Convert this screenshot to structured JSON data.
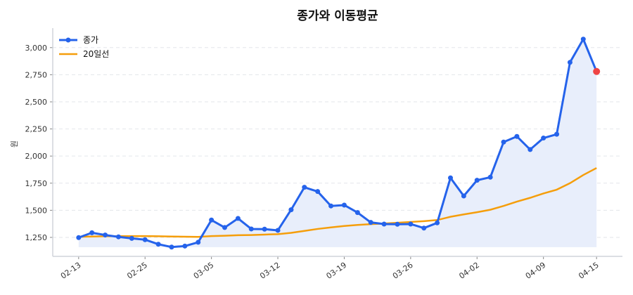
{
  "chart_data": {
    "type": "line",
    "title": "종가와 이동평균",
    "xlabel": "",
    "ylabel": "원",
    "ylim": [
      1075,
      3180
    ],
    "xlim": [
      -1.95,
      40.95
    ],
    "grid": "y-dashed",
    "legend": "top-left",
    "x_ticks": [
      {
        "index": 0,
        "label": "02-13"
      },
      {
        "index": 5,
        "label": "02-25"
      },
      {
        "index": 10,
        "label": "03-05"
      },
      {
        "index": 15,
        "label": "03-12"
      },
      {
        "index": 20,
        "label": "03-19"
      },
      {
        "index": 25,
        "label": "03-26"
      },
      {
        "index": 30,
        "label": "04-02"
      },
      {
        "index": 35,
        "label": "04-09"
      },
      {
        "index": 39,
        "label": "04-15"
      }
    ],
    "y_ticks": [
      {
        "value": 1250,
        "label": "1,250"
      },
      {
        "value": 1500,
        "label": "1,500"
      },
      {
        "value": 1750,
        "label": "1,750"
      },
      {
        "value": 2000,
        "label": "2,000"
      },
      {
        "value": 2250,
        "label": "2,250"
      },
      {
        "value": 2500,
        "label": "2,500"
      },
      {
        "value": 2750,
        "label": "2,750"
      },
      {
        "value": 3000,
        "label": "3,000"
      }
    ],
    "fill_baseline": 1160,
    "series": [
      {
        "name": "종가",
        "color": "#2563eb",
        "marker": "circle",
        "values": [
          1248,
          1293,
          1272,
          1255,
          1241,
          1229,
          1187,
          1161,
          1170,
          1205,
          1410,
          1341,
          1425,
          1328,
          1326,
          1315,
          1505,
          1712,
          1673,
          1540,
          1548,
          1479,
          1388,
          1373,
          1371,
          1373,
          1336,
          1384,
          1799,
          1632,
          1777,
          1805,
          2129,
          2181,
          2060,
          2166,
          2201,
          2864,
          3078,
          2780
        ]
      },
      {
        "name": "20일선",
        "color": "#f59e0b",
        "values": [
          1255,
          1258,
          1260,
          1261,
          1262,
          1262,
          1260,
          1258,
          1256,
          1255,
          1262,
          1265,
          1270,
          1272,
          1276,
          1280,
          1292,
          1310,
          1328,
          1342,
          1355,
          1365,
          1372,
          1378,
          1385,
          1392,
          1400,
          1410,
          1440,
          1462,
          1482,
          1505,
          1540,
          1580,
          1615,
          1655,
          1690,
          1750,
          1825,
          1890
        ]
      }
    ],
    "last_point_color": "#ef4444",
    "fill_color": "#e8eefb"
  }
}
